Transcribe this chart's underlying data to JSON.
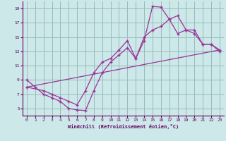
{
  "background_color": "#cce8e8",
  "plot_bg_color": "#cce8e8",
  "grid_color": "#99bbbb",
  "line_color": "#993399",
  "xlim": [
    -0.5,
    23.5
  ],
  "ylim": [
    4,
    20
  ],
  "xticks": [
    0,
    1,
    2,
    3,
    4,
    5,
    6,
    7,
    8,
    9,
    10,
    11,
    12,
    13,
    14,
    15,
    16,
    17,
    18,
    19,
    20,
    21,
    22,
    23
  ],
  "yticks": [
    5,
    7,
    9,
    11,
    13,
    15,
    17,
    19
  ],
  "xlabel": "Windchill (Refroidissement éolien,°C)",
  "line1_x": [
    0,
    1,
    2,
    3,
    4,
    5,
    6,
    7,
    8,
    9,
    10,
    11,
    12,
    13,
    14,
    15,
    16,
    17,
    18,
    19,
    20,
    21,
    22,
    23
  ],
  "line1_y": [
    9,
    8,
    7,
    6.5,
    6,
    5,
    4.8,
    4.7,
    7.5,
    10,
    11.5,
    12.5,
    13.5,
    12,
    14.5,
    19.3,
    19.2,
    17.5,
    15.5,
    16,
    15.5,
    14,
    14,
    13
  ],
  "line2_x": [
    0,
    2,
    3,
    4,
    5,
    6,
    7,
    8,
    9,
    10,
    11,
    12,
    13,
    14,
    15,
    16,
    17,
    18,
    19,
    20,
    21,
    22,
    23
  ],
  "line2_y": [
    8,
    7.5,
    7,
    6.5,
    6,
    5.5,
    7.5,
    10,
    11.5,
    12,
    13.2,
    14.5,
    12,
    15,
    16,
    16.5,
    17.5,
    18,
    16,
    16,
    14,
    14,
    13.2
  ],
  "line3_x": [
    0,
    23
  ],
  "line3_y": [
    8.0,
    13.2
  ]
}
